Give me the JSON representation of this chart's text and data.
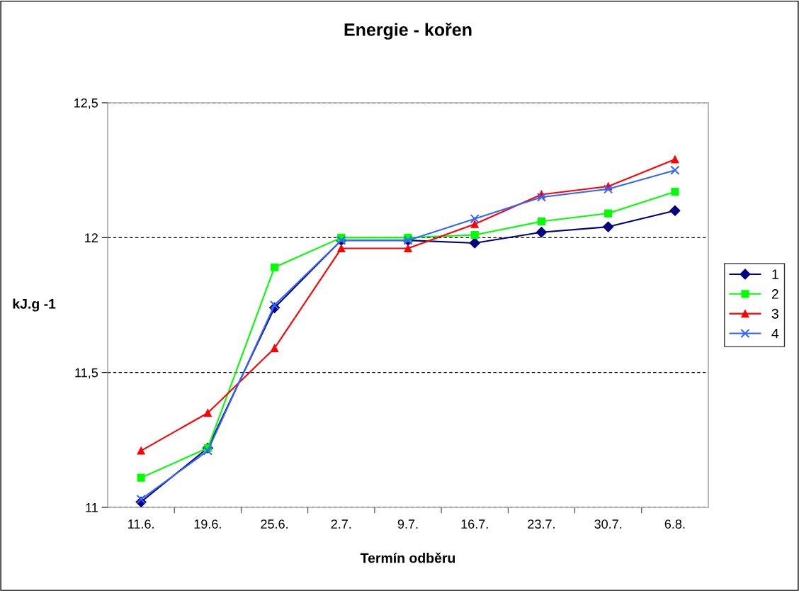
{
  "chart_data": {
    "type": "line",
    "title": "Energie - kořen",
    "xlabel": "Termín odběru",
    "ylabel": "kJ.g -1",
    "categories": [
      "11.6.",
      "19.6.",
      "25.6.",
      "2.7.",
      "9.7.",
      "16.7.",
      "23.7.",
      "30.7.",
      "6.8."
    ],
    "series": [
      {
        "name": "1",
        "color": "#000080",
        "marker": "diamond",
        "values": [
          11.02,
          11.22,
          11.74,
          11.99,
          11.99,
          11.98,
          12.02,
          12.04,
          12.1
        ]
      },
      {
        "name": "2",
        "color": "#00ff00",
        "marker": "square",
        "values": [
          11.11,
          11.22,
          11.89,
          12.0,
          12.0,
          12.01,
          12.06,
          12.09,
          12.17
        ]
      },
      {
        "name": "3",
        "color": "#ff0000",
        "marker": "triangle",
        "values": [
          11.21,
          11.35,
          11.59,
          11.96,
          11.96,
          12.05,
          12.16,
          12.19,
          12.29
        ]
      },
      {
        "name": "4",
        "color": "#3366ff",
        "marker": "cross",
        "values": [
          11.03,
          11.21,
          11.75,
          11.99,
          11.99,
          12.07,
          12.15,
          12.18,
          12.25
        ]
      }
    ],
    "ylim": [
      11,
      12.5
    ],
    "yticks": [
      {
        "value": 11,
        "label": "11"
      },
      {
        "value": 11.5,
        "label": "11,5"
      },
      {
        "value": 12,
        "label": "12"
      },
      {
        "value": 12.5,
        "label": "12,5"
      }
    ],
    "grid": "y",
    "legend": "right"
  }
}
